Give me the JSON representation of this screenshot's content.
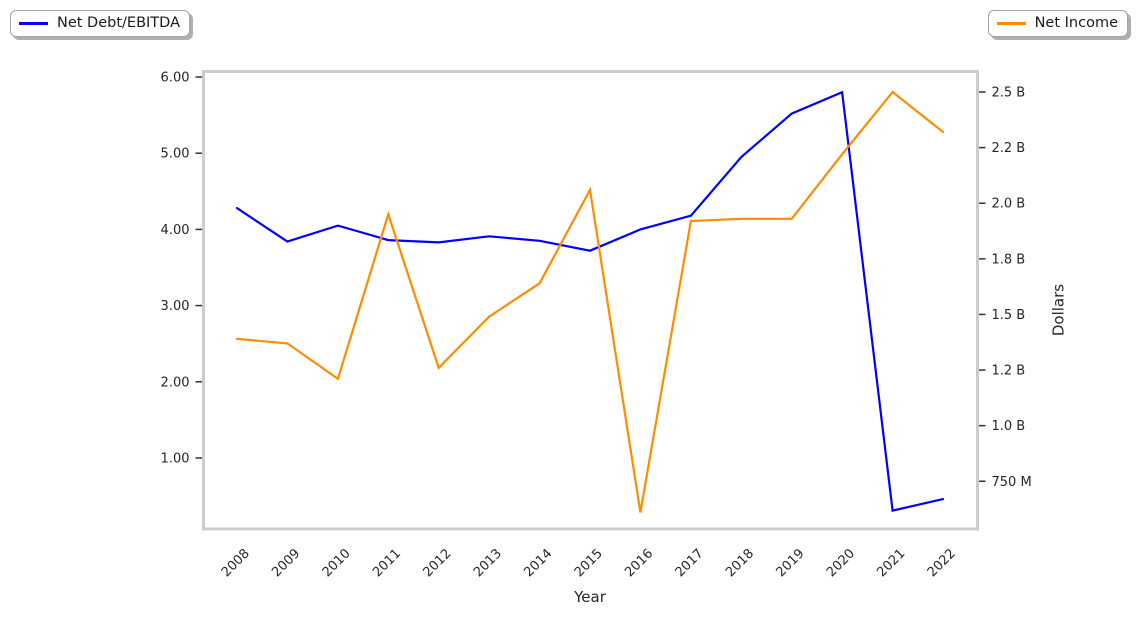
{
  "figure": {
    "background": "#ffffff",
    "frame_color": "#cccccc",
    "tick_color": "#333333",
    "text_color": "#262626"
  },
  "legend_left": {
    "label": "Net Debt/EBITDA",
    "line_color": "#0000ff"
  },
  "legend_right": {
    "label": "Net Income",
    "line_color": "#ff8c00"
  },
  "chart_data": {
    "type": "line",
    "title": "",
    "xlabel": "Year",
    "right_ylabel": "Dollars",
    "grid": false,
    "legend_position": [
      "outside upper left",
      "outside upper right"
    ],
    "categories": [
      2008,
      2009,
      2010,
      2011,
      2012,
      2013,
      2014,
      2015,
      2016,
      2017,
      2018,
      2019,
      2020,
      2021,
      2022
    ],
    "x_tick_labels": [
      "2008",
      "2009",
      "2010",
      "2011",
      "2012",
      "2013",
      "2014",
      "2015",
      "2016",
      "2017",
      "2018",
      "2019",
      "2020",
      "2021",
      "2022"
    ],
    "x_tick_rotation_deg": 45,
    "series": [
      {
        "name": "Net Debt/EBITDA",
        "axis": "left",
        "color": "#0000ff",
        "values": [
          4.28,
          3.84,
          4.05,
          3.86,
          3.83,
          3.91,
          3.85,
          3.72,
          4.0,
          4.18,
          4.95,
          5.52,
          5.8,
          0.31,
          0.46
        ]
      },
      {
        "name": "Net Income",
        "axis": "right",
        "color": "#ff8c00",
        "unit": "USD billions",
        "values": [
          1.39,
          1.37,
          1.21,
          1.95,
          1.26,
          1.49,
          1.64,
          2.06,
          0.61,
          1.92,
          1.93,
          1.93,
          2.22,
          2.5,
          2.32
        ]
      }
    ],
    "left_axis": {
      "range": [
        0.05,
        6.09
      ],
      "ticks": [
        6,
        5,
        4,
        3,
        2,
        1
      ],
      "tick_labels": [
        "6.00",
        "5.00",
        "4.00",
        "3.00",
        "2.00",
        "1.00"
      ]
    },
    "right_axis": {
      "label": "Dollars",
      "unit": "USD",
      "range_billions": [
        0.53,
        2.6
      ],
      "ticks_billions": [
        2.5,
        2.25,
        2.0,
        1.75,
        1.5,
        1.25,
        1.0,
        0.75
      ],
      "tick_labels": [
        "2.5 B",
        "2.2 B",
        "2.0 B",
        "1.8 B",
        "1.5 B",
        "1.2 B",
        "1.0 B",
        "750 M"
      ]
    }
  }
}
